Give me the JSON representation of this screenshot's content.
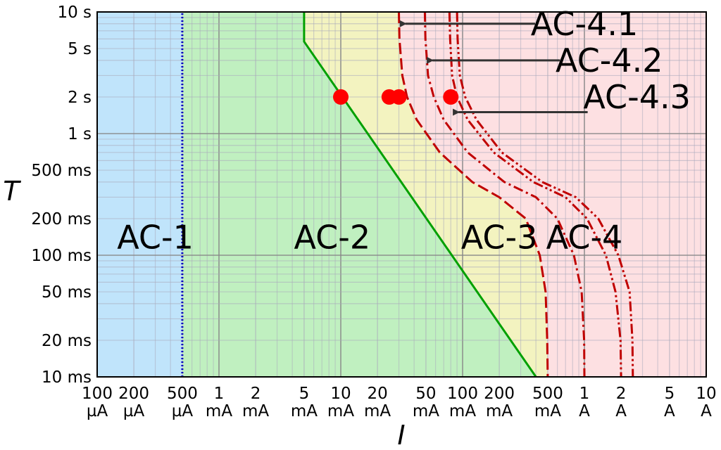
{
  "chart_data": {
    "type": "area",
    "x_scale": "log",
    "y_scale": "log",
    "xlim": [
      0.1,
      10000
    ],
    "ylim": [
      10,
      10000
    ],
    "x_unit": "mA",
    "y_unit": "ms",
    "xlabel": "I",
    "ylabel": "T",
    "grid": true,
    "y_ticks": [
      {
        "value": 10000,
        "label": "10 s"
      },
      {
        "value": 5000,
        "label": "5 s"
      },
      {
        "value": 2000,
        "label": "2 s"
      },
      {
        "value": 1000,
        "label": "1 s"
      },
      {
        "value": 500,
        "label": "500 ms"
      },
      {
        "value": 200,
        "label": "200 ms"
      },
      {
        "value": 100,
        "label": "100 ms"
      },
      {
        "value": 50,
        "label": "50 ms"
      },
      {
        "value": 20,
        "label": "20 ms"
      },
      {
        "value": 10,
        "label": "10 ms"
      }
    ],
    "x_ticks": [
      {
        "value": 0.1,
        "num": "100",
        "unit": "µA"
      },
      {
        "value": 0.2,
        "num": "200",
        "unit": "µA"
      },
      {
        "value": 0.5,
        "num": "500",
        "unit": "µA"
      },
      {
        "value": 1,
        "num": "1",
        "unit": "mA"
      },
      {
        "value": 2,
        "num": "2",
        "unit": "mA"
      },
      {
        "value": 5,
        "num": "5",
        "unit": "mA"
      },
      {
        "value": 10,
        "num": "10",
        "unit": "mA"
      },
      {
        "value": 20,
        "num": "20",
        "unit": "mA"
      },
      {
        "value": 50,
        "num": "50",
        "unit": "mA"
      },
      {
        "value": 100,
        "num": "100",
        "unit": "mA"
      },
      {
        "value": 200,
        "num": "200",
        "unit": "mA"
      },
      {
        "value": 500,
        "num": "500",
        "unit": "mA"
      },
      {
        "value": 1000,
        "num": "1",
        "unit": "A"
      },
      {
        "value": 2000,
        "num": "2",
        "unit": "A"
      },
      {
        "value": 5000,
        "num": "5",
        "unit": "A"
      },
      {
        "value": 10000,
        "num": "10",
        "unit": "A"
      }
    ],
    "regions": [
      {
        "label": "AC-1",
        "color": "#c0e4fb",
        "label_at": {
          "x": 0.3,
          "y": 140
        }
      },
      {
        "label": "AC-2",
        "color": "#c0f0c0",
        "label_at": {
          "x": 8.5,
          "y": 140
        }
      },
      {
        "label": "AC-3",
        "color": "#f3f3c0",
        "label_at": {
          "x": 200,
          "y": 140
        }
      },
      {
        "label": "AC-4",
        "color": "#fde0e2",
        "label_at": {
          "x": 1000,
          "y": 140
        }
      }
    ],
    "boundaries": [
      {
        "name": "a",
        "style": "dotted",
        "color": "#0000c0",
        "points": [
          [
            0.5,
            10
          ],
          [
            0.5,
            10000
          ]
        ]
      },
      {
        "name": "b",
        "style": "solid",
        "color": "#00a000",
        "points": [
          [
            5,
            10000
          ],
          [
            5,
            5700
          ],
          [
            400,
            10
          ]
        ]
      },
      {
        "name": "c1",
        "style": "dashed",
        "color": "#c00000",
        "points": [
          [
            30,
            10000
          ],
          [
            30.3,
            6000
          ],
          [
            32,
            3000
          ],
          [
            35,
            2000
          ],
          [
            42,
            1300
          ],
          [
            65,
            700
          ],
          [
            120,
            400
          ],
          [
            200,
            300
          ],
          [
            330,
            200
          ],
          [
            430,
            100
          ],
          [
            480,
            50
          ],
          [
            495,
            20
          ],
          [
            500,
            10
          ]
        ]
      },
      {
        "name": "c2",
        "style": "dashdot",
        "color": "#c00000",
        "points": [
          [
            49,
            10000
          ],
          [
            49.5,
            6000
          ],
          [
            52,
            3000
          ],
          [
            58,
            2000
          ],
          [
            70,
            1300
          ],
          [
            110,
            700
          ],
          [
            220,
            400
          ],
          [
            400,
            300
          ],
          [
            600,
            200
          ],
          [
            820,
            100
          ],
          [
            950,
            50
          ],
          [
            995,
            20
          ],
          [
            1000,
            10
          ]
        ]
      },
      {
        "name": "c3",
        "style": "dashdotdot",
        "color": "#c00000",
        "points": [
          [
            78,
            10000
          ],
          [
            79,
            6000
          ],
          [
            82,
            3000
          ],
          [
            90,
            2000
          ],
          [
            110,
            1300
          ],
          [
            180,
            700
          ],
          [
            380,
            400
          ],
          [
            700,
            300
          ],
          [
            1050,
            200
          ],
          [
            1500,
            100
          ],
          [
            1800,
            50
          ],
          [
            1980,
            20
          ],
          [
            2000,
            10
          ]
        ]
      },
      {
        "name": "c3b",
        "style": "dashdotdot",
        "color": "#c00000",
        "points": [
          [
            90,
            10000
          ],
          [
            91,
            6000
          ],
          [
            95,
            3000
          ],
          [
            105,
            2000
          ],
          [
            130,
            1300
          ],
          [
            210,
            700
          ],
          [
            450,
            400
          ],
          [
            850,
            300
          ],
          [
            1300,
            200
          ],
          [
            1900,
            100
          ],
          [
            2350,
            50
          ],
          [
            2480,
            20
          ],
          [
            2500,
            10
          ]
        ]
      }
    ],
    "points": [
      {
        "x": 10,
        "y": 2000,
        "color": "#ff0000"
      },
      {
        "x": 25,
        "y": 2000,
        "color": "#ff0000"
      },
      {
        "x": 30,
        "y": 2000,
        "color": "#ff0000"
      },
      {
        "x": 80,
        "y": 2000,
        "color": "#ff0000"
      }
    ],
    "annotations": [
      {
        "label": "AC-4.1",
        "text_at": {
          "x": 1000,
          "y": 8000
        },
        "arrow_to": {
          "x": 33,
          "y": 8000
        }
      },
      {
        "label": "AC-4.2",
        "text_at": {
          "x": 1600,
          "y": 4000
        },
        "arrow_to": {
          "x": 55,
          "y": 4000
        }
      },
      {
        "label": "AC-4.3",
        "text_at": {
          "x": 2700,
          "y": 2000
        },
        "arrow_to": {
          "x": 90,
          "y": 1500
        }
      }
    ]
  }
}
